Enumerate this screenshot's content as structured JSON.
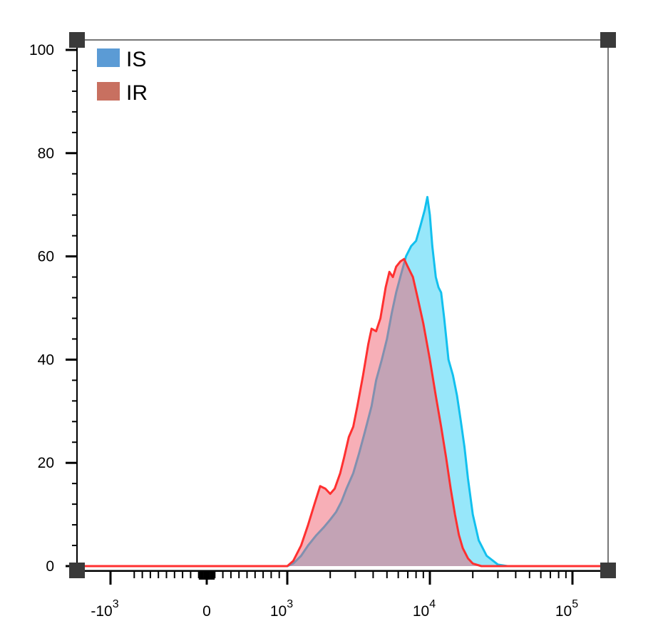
{
  "chart_data": {
    "type": "area",
    "title": "",
    "xlabel": "",
    "ylabel": "",
    "x_scale": "biexponential",
    "ylim": [
      0,
      100
    ],
    "grid": false,
    "legend_position": "top-left",
    "y_ticks": [
      {
        "value": 0,
        "label": "0"
      },
      {
        "value": 20,
        "label": "20"
      },
      {
        "value": 40,
        "label": "40"
      },
      {
        "value": 60,
        "label": "60"
      },
      {
        "value": 80,
        "label": "80"
      },
      {
        "value": 100,
        "label": "100"
      }
    ],
    "x_ticks": [
      {
        "value": -1000,
        "base": "-10",
        "exp": "3"
      },
      {
        "value": 0,
        "base": "0",
        "exp": ""
      },
      {
        "value": 1000,
        "base": "10",
        "exp": "3"
      },
      {
        "value": 10000,
        "base": "10",
        "exp": "4"
      },
      {
        "value": 100000,
        "base": "10",
        "exp": "5"
      }
    ],
    "series": [
      {
        "name": "IS",
        "color": "#5b9bd5",
        "fill": "#30d0f5",
        "stroke": "#12c0ee",
        "points": [
          [
            -2000,
            0
          ],
          [
            1000,
            0
          ],
          [
            1100,
            0.5
          ],
          [
            1250,
            2
          ],
          [
            1400,
            4
          ],
          [
            1600,
            6
          ],
          [
            1800,
            7.5
          ],
          [
            2000,
            9
          ],
          [
            2200,
            10.5
          ],
          [
            2400,
            12.5
          ],
          [
            2600,
            15
          ],
          [
            2900,
            18
          ],
          [
            3200,
            22
          ],
          [
            3500,
            26
          ],
          [
            3900,
            31
          ],
          [
            4200,
            36
          ],
          [
            4600,
            40
          ],
          [
            5000,
            44
          ],
          [
            5400,
            49
          ],
          [
            5800,
            53
          ],
          [
            6200,
            56
          ],
          [
            6800,
            60
          ],
          [
            7400,
            62
          ],
          [
            8000,
            63
          ],
          [
            8600,
            66
          ],
          [
            9200,
            69
          ],
          [
            9600,
            71.5
          ],
          [
            10000,
            68
          ],
          [
            10400,
            62
          ],
          [
            11000,
            56
          ],
          [
            11500,
            54
          ],
          [
            12000,
            53
          ],
          [
            12600,
            48
          ],
          [
            13500,
            40
          ],
          [
            14500,
            37
          ],
          [
            15500,
            33
          ],
          [
            16500,
            28
          ],
          [
            17500,
            23
          ],
          [
            18500,
            17
          ],
          [
            20000,
            10
          ],
          [
            22000,
            5
          ],
          [
            25000,
            2
          ],
          [
            30000,
            0.3
          ],
          [
            35000,
            0
          ],
          [
            200000,
            0
          ]
        ]
      },
      {
        "name": "IR",
        "color": "#c87060",
        "fill": "#f06070",
        "stroke": "#ff3030",
        "points": [
          [
            -2000,
            0
          ],
          [
            1000,
            0
          ],
          [
            1100,
            1
          ],
          [
            1250,
            4
          ],
          [
            1400,
            8
          ],
          [
            1550,
            12
          ],
          [
            1700,
            15.5
          ],
          [
            1850,
            15
          ],
          [
            2000,
            14
          ],
          [
            2150,
            15
          ],
          [
            2350,
            18
          ],
          [
            2500,
            21
          ],
          [
            2700,
            25
          ],
          [
            2900,
            27
          ],
          [
            3100,
            31
          ],
          [
            3400,
            37
          ],
          [
            3700,
            43
          ],
          [
            3900,
            46
          ],
          [
            4200,
            45.5
          ],
          [
            4500,
            48
          ],
          [
            4900,
            54
          ],
          [
            5200,
            57
          ],
          [
            5500,
            56
          ],
          [
            5800,
            58
          ],
          [
            6200,
            59
          ],
          [
            6600,
            59.5
          ],
          [
            7000,
            58
          ],
          [
            7600,
            56
          ],
          [
            8200,
            52
          ],
          [
            9000,
            47
          ],
          [
            10000,
            40
          ],
          [
            11000,
            33
          ],
          [
            12000,
            27
          ],
          [
            13000,
            21
          ],
          [
            14000,
            15
          ],
          [
            15000,
            10
          ],
          [
            16000,
            6
          ],
          [
            17000,
            3.5
          ],
          [
            18500,
            1.5
          ],
          [
            20000,
            0.5
          ],
          [
            23000,
            0
          ],
          [
            200000,
            0
          ]
        ]
      }
    ]
  }
}
